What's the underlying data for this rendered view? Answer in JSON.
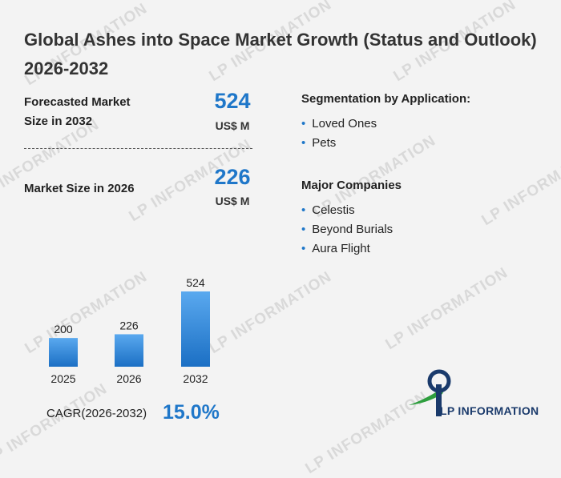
{
  "title": "Global Ashes into Space Market Growth (Status and Outlook) 2026-2032",
  "forecast": {
    "label_line1": "Forecasted Market",
    "label_line2": "Size in 2032",
    "value": "524",
    "unit": "US$ M"
  },
  "current": {
    "label": "Market Size in 2026",
    "value": "226",
    "unit": "US$ M"
  },
  "segmentation": {
    "heading": "Segmentation by Application:",
    "items": [
      "Loved Ones",
      "Pets"
    ]
  },
  "companies": {
    "heading": "Major Companies",
    "items": [
      "Celestis",
      "Beyond Burials",
      "Aura Flight"
    ]
  },
  "cagr": {
    "label": "CAGR(2026-2032)",
    "value": "15.0%"
  },
  "watermark": "LP INFORMATION",
  "logo_text": "LP INFORMATION",
  "colors": {
    "accent": "#1f77c9",
    "bar_top": "#5aa9ef",
    "bar_bottom": "#1b6fc4",
    "logo_green": "#2e9e3e",
    "logo_navy": "#1a3a6b"
  },
  "chart_data": {
    "type": "bar",
    "categories": [
      "2025",
      "2026",
      "2032"
    ],
    "values": [
      200,
      226,
      524
    ],
    "title": "",
    "xlabel": "",
    "ylabel": "",
    "ylim": [
      0,
      524
    ],
    "grid": false
  }
}
